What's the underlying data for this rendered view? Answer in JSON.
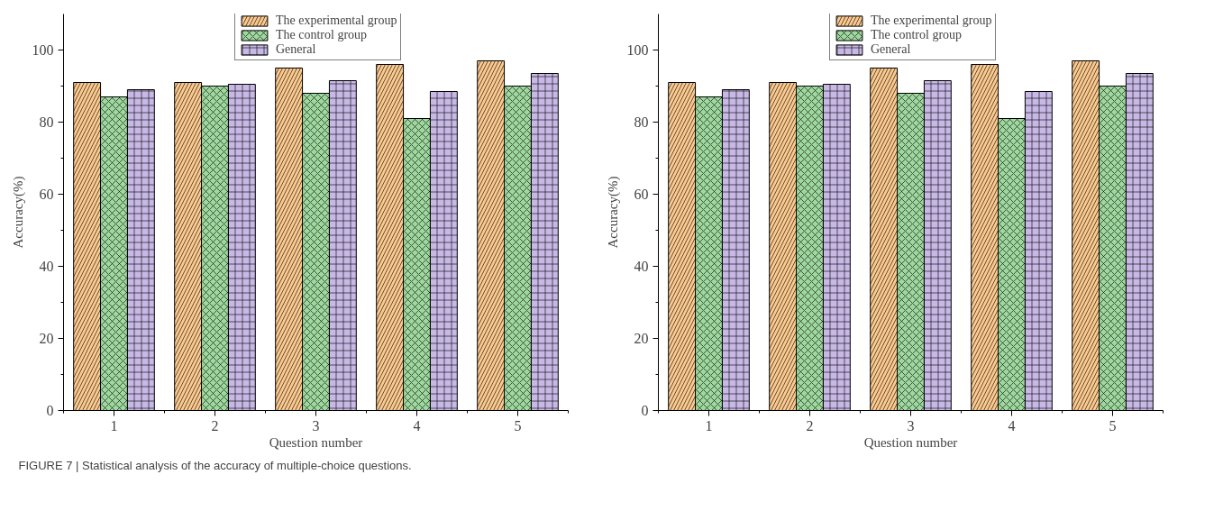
{
  "chart_data": [
    {
      "type": "bar",
      "xlabel": "Question number",
      "ylabel": "Accuracy(%)",
      "categories": [
        "1",
        "2",
        "3",
        "4",
        "5"
      ],
      "ylim": [
        0,
        110
      ],
      "yticks": [
        0,
        20,
        40,
        60,
        80,
        100
      ],
      "grid": false,
      "legend": "top",
      "series": [
        {
          "name": "The experimental group",
          "color": "#fbc98e",
          "values": [
            91,
            91,
            95,
            96,
            97
          ]
        },
        {
          "name": "The control group",
          "color": "#9ed89e",
          "values": [
            87,
            90,
            88,
            81,
            90
          ]
        },
        {
          "name": "General",
          "color": "#c7b8e6",
          "values": [
            89,
            90.5,
            91.5,
            88.5,
            93.5
          ]
        }
      ],
      "annotations": [
        "FIGURE 7 | Statistical analysis of the accuracy of multiple-choice questions."
      ]
    },
    {
      "type": "bar",
      "xlabel": "Question number",
      "ylabel": "Accuracy(%)",
      "categories": [
        "1",
        "2",
        "3",
        "4",
        "5"
      ],
      "ylim": [
        0,
        110
      ],
      "yticks": [
        0,
        20,
        40,
        60,
        80,
        100
      ],
      "grid": false,
      "legend": "top",
      "series": [
        {
          "name": "The experimental group",
          "color": "#fbc98e",
          "values": [
            91,
            91,
            95,
            96,
            97
          ]
        },
        {
          "name": "The control group",
          "color": "#9ed89e",
          "values": [
            87,
            90,
            88,
            81,
            90
          ]
        },
        {
          "name": "General",
          "color": "#c7b8e6",
          "values": [
            89,
            90.5,
            91.5,
            88.5,
            93.5
          ]
        }
      ]
    }
  ]
}
